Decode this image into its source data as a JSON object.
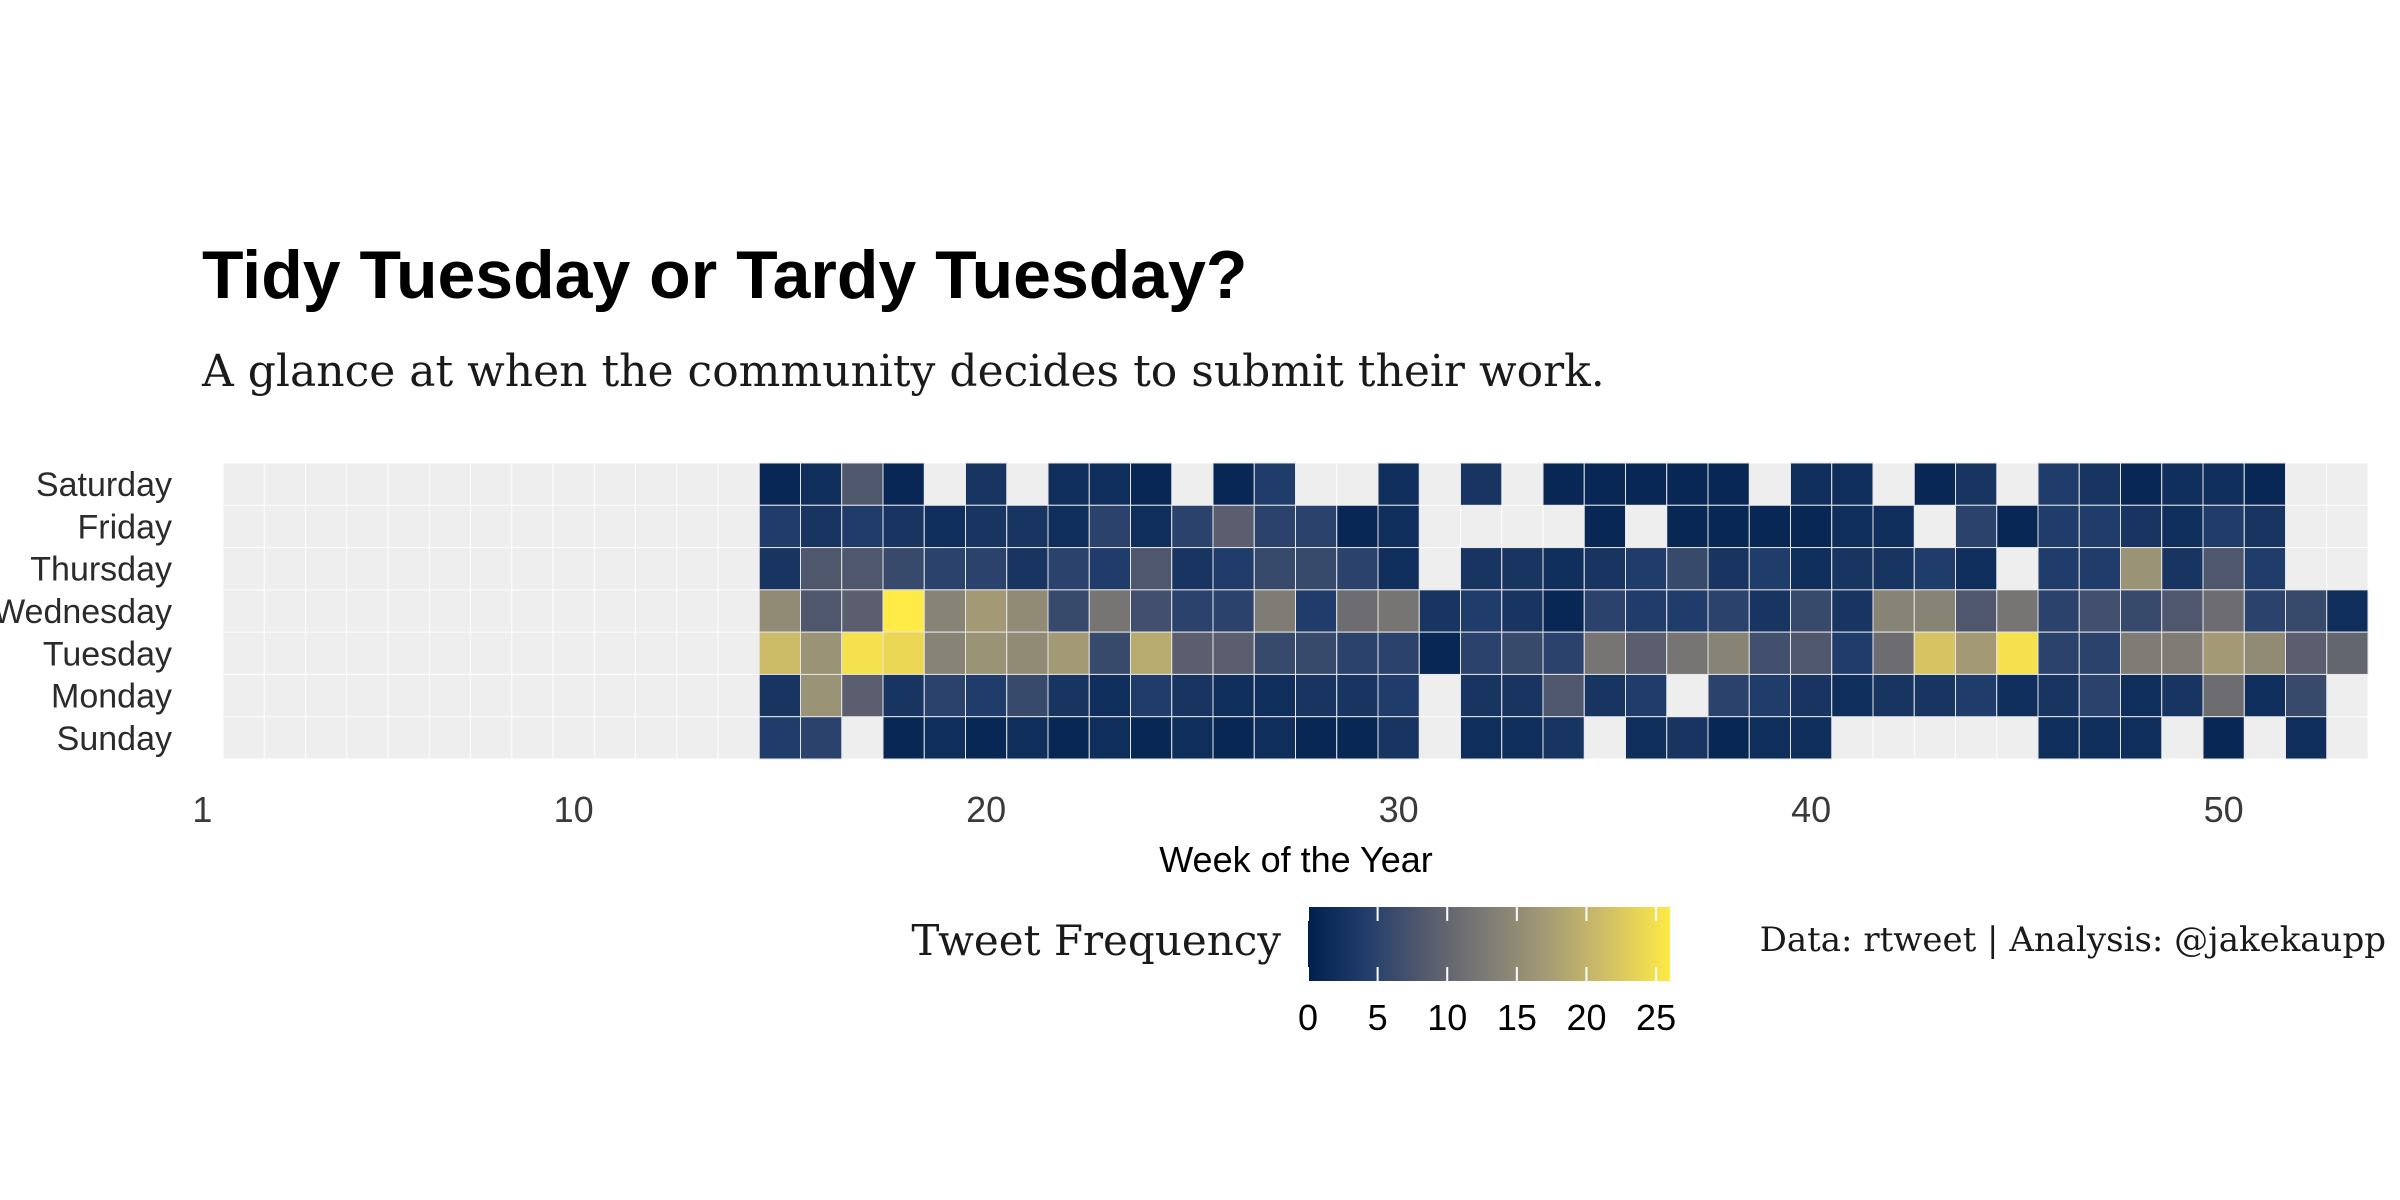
{
  "chart_data": {
    "type": "heatmap",
    "title": "Tidy Tuesday or Tardy Tuesday?",
    "subtitle": "A glance at when the community decides to submit their work.",
    "xlabel": "Week of the Year",
    "ylabel": "",
    "caption": "Data: rtweet | Analysis: @jakekaupp",
    "days": [
      "Saturday",
      "Friday",
      "Thursday",
      "Wednesday",
      "Tuesday",
      "Monday",
      "Sunday"
    ],
    "weeks": [
      1,
      2,
      3,
      4,
      5,
      6,
      7,
      8,
      9,
      10,
      11,
      12,
      13,
      14,
      15,
      16,
      17,
      18,
      19,
      20,
      21,
      22,
      23,
      24,
      25,
      26,
      27,
      28,
      29,
      30,
      31,
      32,
      33,
      34,
      35,
      36,
      37,
      38,
      39,
      40,
      41,
      42,
      43,
      44,
      45,
      46,
      47,
      48,
      49,
      50,
      51,
      52
    ],
    "x_ticks": [
      1,
      10,
      20,
      30,
      40,
      50
    ],
    "x_tick_labels": [
      "1",
      "10",
      "20",
      "30",
      "40",
      "50"
    ],
    "xlim": [
      1,
      52
    ],
    "legend": {
      "title": "Tweet Frequency",
      "ticks": [
        0,
        5,
        10,
        15,
        20,
        25
      ],
      "tick_labels": [
        "0",
        "5",
        "10",
        "15",
        "20",
        "25"
      ],
      "min": 0,
      "max": 26,
      "position": "bottom"
    },
    "colors": {
      "empty": "#eeeeee",
      "scale": [
        "#00204d",
        "#233e6c",
        "#575c6d",
        "#7f7c75",
        "#a69d75",
        "#d3c164",
        "#ffea46"
      ]
    },
    "values": [
      [
        null,
        null,
        null,
        null,
        null,
        null,
        null,
        null,
        null,
        null,
        null,
        null,
        null,
        1,
        2,
        8,
        1,
        null,
        3,
        null,
        2,
        2,
        1,
        null,
        1,
        4,
        null,
        null,
        2,
        null,
        3,
        null,
        1,
        1,
        1,
        1,
        1,
        null,
        2,
        2,
        null,
        1,
        3,
        null,
        4,
        3,
        1,
        2,
        2,
        1,
        null,
        null
      ],
      [
        null,
        null,
        null,
        null,
        null,
        null,
        null,
        null,
        null,
        null,
        null,
        null,
        null,
        4,
        3,
        4,
        3,
        2,
        3,
        3,
        2,
        5,
        2,
        5,
        9,
        5,
        5,
        1,
        2,
        null,
        null,
        null,
        null,
        1,
        null,
        1,
        1,
        1,
        1,
        2,
        2,
        null,
        5,
        1,
        4,
        4,
        3,
        2,
        4,
        3,
        null,
        null
      ],
      [
        null,
        null,
        null,
        null,
        null,
        null,
        null,
        null,
        null,
        null,
        null,
        null,
        null,
        3,
        8,
        8,
        6,
        5,
        5,
        3,
        5,
        4,
        8,
        3,
        4,
        6,
        6,
        5,
        2,
        null,
        3,
        3,
        2,
        3,
        4,
        6,
        3,
        4,
        2,
        3,
        3,
        4,
        2,
        null,
        4,
        4,
        16,
        3,
        8,
        4,
        null,
        null
      ],
      [
        null,
        null,
        null,
        null,
        null,
        null,
        null,
        null,
        null,
        null,
        null,
        null,
        null,
        15,
        8,
        9,
        26,
        14,
        17,
        15,
        6,
        12,
        7,
        5,
        5,
        13,
        4,
        11,
        12,
        3,
        4,
        3,
        1,
        5,
        4,
        4,
        5,
        3,
        6,
        3,
        14,
        14,
        8,
        12,
        5,
        7,
        6,
        8,
        11,
        5,
        6,
        2
      ],
      [
        null,
        null,
        null,
        null,
        null,
        null,
        null,
        null,
        null,
        null,
        null,
        null,
        null,
        21,
        16,
        25,
        24,
        14,
        16,
        15,
        17,
        6,
        19,
        9,
        9,
        6,
        6,
        5,
        5,
        1,
        5,
        6,
        5,
        12,
        9,
        12,
        14,
        7,
        8,
        4,
        11,
        22,
        17,
        25,
        5,
        5,
        13,
        13,
        17,
        15,
        9,
        10
      ],
      [
        null,
        null,
        null,
        null,
        null,
        null,
        null,
        null,
        null,
        null,
        null,
        null,
        null,
        3,
        16,
        9,
        3,
        5,
        4,
        6,
        3,
        2,
        4,
        3,
        2,
        2,
        3,
        3,
        4,
        null,
        3,
        3,
        8,
        3,
        4,
        null,
        5,
        4,
        3,
        2,
        3,
        3,
        4,
        2,
        3,
        5,
        2,
        3,
        11,
        2,
        6,
        null
      ],
      [
        null,
        null,
        null,
        null,
        null,
        null,
        null,
        null,
        null,
        null,
        null,
        null,
        null,
        4,
        5,
        null,
        1,
        2,
        1,
        2,
        1,
        2,
        1,
        2,
        1,
        2,
        1,
        1,
        3,
        null,
        2,
        2,
        3,
        null,
        2,
        3,
        1,
        2,
        2,
        null,
        null,
        null,
        null,
        null,
        2,
        2,
        2,
        null,
        1,
        null,
        2,
        null
      ]
    ]
  }
}
